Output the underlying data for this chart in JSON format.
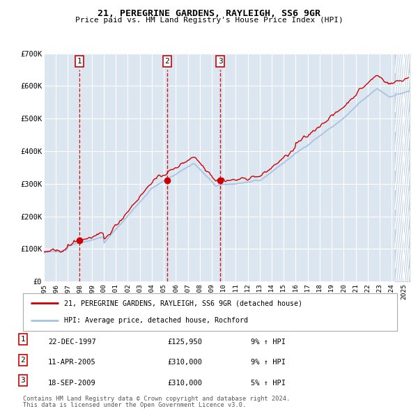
{
  "title": "21, PEREGRINE GARDENS, RAYLEIGH, SS6 9GR",
  "subtitle": "Price paid vs. HM Land Registry's House Price Index (HPI)",
  "bg_color": "#dce6f1",
  "hpi_color": "#a8c4e0",
  "price_color": "#cc0000",
  "transactions": [
    {
      "num": 1,
      "x": 1997.97,
      "price": 125950
    },
    {
      "num": 2,
      "x": 2005.28,
      "price": 310000
    },
    {
      "num": 3,
      "x": 2009.71,
      "price": 310000
    }
  ],
  "table_rows": [
    {
      "num": 1,
      "date": "22-DEC-1997",
      "price": "£125,950",
      "hpi": "9% ↑ HPI"
    },
    {
      "num": 2,
      "date": "11-APR-2005",
      "price": "£310,000",
      "hpi": "9% ↑ HPI"
    },
    {
      "num": 3,
      "date": "18-SEP-2009",
      "price": "£310,000",
      "hpi": "5% ↑ HPI"
    }
  ],
  "legend_line1": "21, PEREGRINE GARDENS, RAYLEIGH, SS6 9GR (detached house)",
  "legend_line2": "HPI: Average price, detached house, Rochford",
  "footnote1": "Contains HM Land Registry data © Crown copyright and database right 2024.",
  "footnote2": "This data is licensed under the Open Government Licence v3.0.",
  "ylim": [
    0,
    700000
  ],
  "yticks": [
    0,
    100000,
    200000,
    300000,
    400000,
    500000,
    600000,
    700000
  ],
  "ytick_labels": [
    "£0",
    "£100K",
    "£200K",
    "£300K",
    "£400K",
    "£500K",
    "£600K",
    "£700K"
  ],
  "xlim_start": 1995.0,
  "xlim_end": 2025.5,
  "diagonal_stripe_color": "#c0d0e4"
}
